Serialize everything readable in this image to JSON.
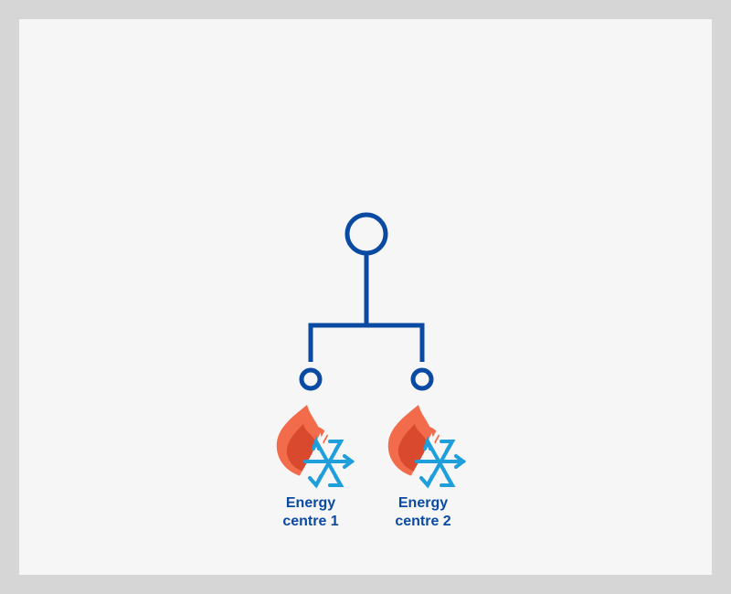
{
  "colors": {
    "background": "#d6d6d6",
    "panel": "#f6f6f6",
    "network_line": "#0b4aa2",
    "flame_outer": "#f26b4a",
    "flame_inner": "#d9492e",
    "snowflake": "#1e9fdc",
    "label_text": "#0b4aa2"
  },
  "nodes": [
    {
      "icon": "heating-cooling-icon",
      "label_line1": "Energy",
      "label_line2": "centre 1"
    },
    {
      "icon": "heating-cooling-icon",
      "label_line1": "Energy",
      "label_line2": "centre 2"
    }
  ]
}
